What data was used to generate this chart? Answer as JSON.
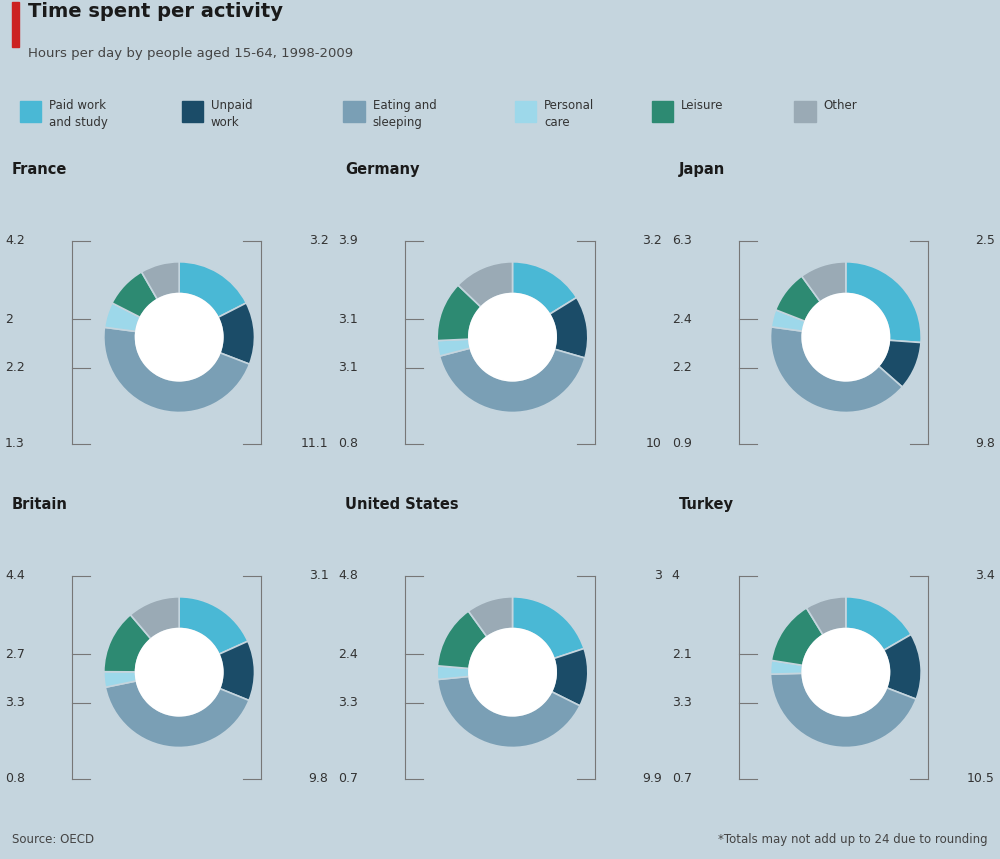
{
  "title": "Time spent per activity",
  "subtitle": "Hours per day by people aged 15-64, 1998-2009",
  "background_color": "#c5d5de",
  "colors": {
    "paid_work": "#4ab8d5",
    "unpaid_work": "#1b4c68",
    "eating_sleeping": "#7a9fb5",
    "personal_care": "#9dd8ea",
    "leisure": "#2d8a72",
    "other": "#9aaab5"
  },
  "legend_items": [
    "Paid work\nand study",
    "Unpaid\nwork",
    "Eating and\nsleeping",
    "Personal\ncare",
    "Leisure",
    "Other"
  ],
  "countries": [
    "France",
    "Germany",
    "Japan",
    "Britain",
    "United States",
    "Turkey"
  ],
  "data": {
    "France": {
      "paid_work": 4.2,
      "unpaid_work": 3.2,
      "eating_sleeping": 11.1,
      "personal_care": 1.3,
      "leisure": 2.2,
      "other": 2.0
    },
    "Germany": {
      "paid_work": 3.9,
      "unpaid_work": 3.2,
      "eating_sleeping": 10.0,
      "personal_care": 0.8,
      "leisure": 3.1,
      "other": 3.1
    },
    "Japan": {
      "paid_work": 6.3,
      "unpaid_work": 2.5,
      "eating_sleeping": 9.8,
      "personal_care": 0.9,
      "leisure": 2.2,
      "other": 2.4
    },
    "Britain": {
      "paid_work": 4.4,
      "unpaid_work": 3.1,
      "eating_sleeping": 9.8,
      "personal_care": 0.8,
      "leisure": 3.3,
      "other": 2.7
    },
    "United States": {
      "paid_work": 4.8,
      "unpaid_work": 3.0,
      "eating_sleeping": 9.9,
      "personal_care": 0.7,
      "leisure": 3.3,
      "other": 2.4
    },
    "Turkey": {
      "paid_work": 4.0,
      "unpaid_work": 3.4,
      "eating_sleeping": 10.5,
      "personal_care": 0.7,
      "leisure": 3.3,
      "other": 2.1
    }
  },
  "source_text": "Source: OECD",
  "footnote_text": "*Totals may not add up to 24 due to rounding",
  "title_fontsize": 14,
  "subtitle_fontsize": 9.5,
  "country_fontsize": 10.5,
  "label_fontsize": 9,
  "legend_fontsize": 8.5
}
